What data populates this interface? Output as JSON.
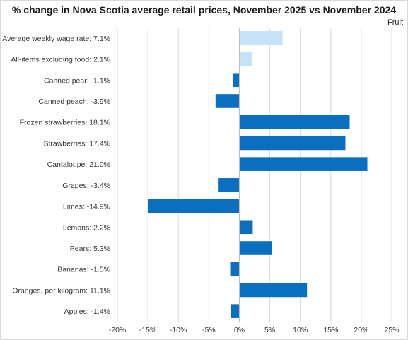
{
  "chart_data": {
    "type": "bar",
    "orientation": "horizontal",
    "title": "% change in Nova Scotia average retail prices, November 2025 vs November 2024",
    "subtitle": "Fruit",
    "categories": [
      "Average weekly wage rate: 7.1%",
      "All-items excluding food: 2.1%",
      "Canned pear: -1.1%",
      "Canned peach: -3.9%",
      "Frozen strawberries: 18.1%",
      "Strawberries: 17.4%",
      "Cantaloupe: 21.0%",
      "Grapes: -3.4%",
      "Limes: -14.9%",
      "Lemons: 2.2%",
      "Pears: 5.3%",
      "Bananas: -1.5%",
      "Oranges, per kilogram: 11.1%",
      "Apples: -1.4%"
    ],
    "values": [
      7.1,
      2.1,
      -1.1,
      -3.9,
      18.1,
      17.4,
      21.0,
      -3.4,
      -14.9,
      2.2,
      5.3,
      -1.5,
      11.1,
      -1.4
    ],
    "bar_colors": [
      "#c5e3f7",
      "#c5e3f7",
      "#0b6fbf",
      "#0b6fbf",
      "#0b6fbf",
      "#0b6fbf",
      "#0b6fbf",
      "#0b6fbf",
      "#0b6fbf",
      "#0b6fbf",
      "#0b6fbf",
      "#0b6fbf",
      "#0b6fbf",
      "#0b6fbf"
    ],
    "xlim": [
      -20,
      25
    ],
    "xticks": [
      -20,
      -15,
      -10,
      -5,
      0,
      5,
      10,
      15,
      20,
      25
    ],
    "xtick_labels": [
      "-20%",
      "-15%",
      "-10%",
      "-5%",
      "0%",
      "5%",
      "10%",
      "15%",
      "20%",
      "25%"
    ],
    "grid": true,
    "legend": false
  }
}
